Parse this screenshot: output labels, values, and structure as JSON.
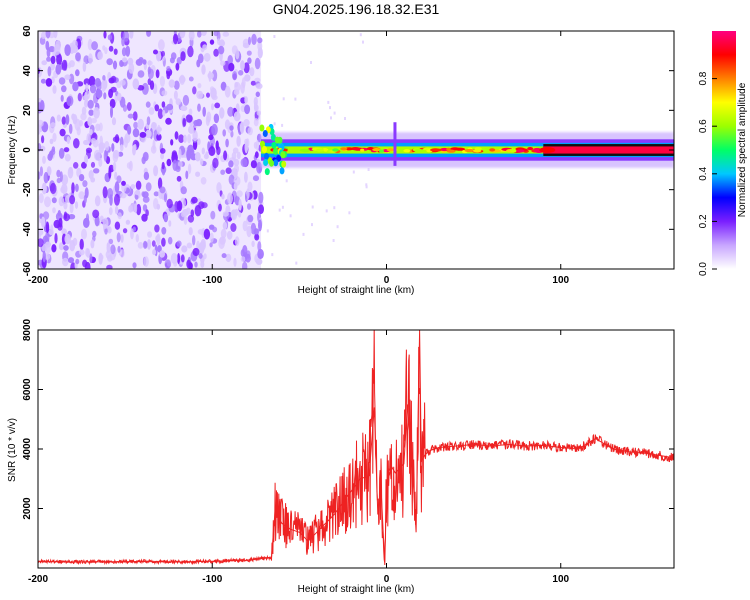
{
  "figure": {
    "title": "GN04.2025.196.18.32.E31"
  },
  "chart_data": [
    {
      "type": "heatmap",
      "xlabel": "Height of straight line (km)",
      "ylabel": "Frequency (Hz)",
      "xlim": [
        -200,
        165
      ],
      "ylim": [
        -60,
        60
      ],
      "xticks": [
        -200,
        -100,
        0,
        100
      ],
      "yticks": [
        -60,
        -40,
        -20,
        0,
        20,
        40,
        60
      ],
      "colorbar": {
        "label": "Normalized spectral amplitude",
        "range": [
          0,
          1
        ],
        "ticks": [
          "0.0",
          "0.2",
          "0.4",
          "0.6",
          "0.8"
        ],
        "colors": [
          "#ffffff",
          "#c8a6ff",
          "#7a1fff",
          "#0000ff",
          "#00c8ff",
          "#00ff66",
          "#9cff00",
          "#ffff00",
          "#ff8000",
          "#ff0000",
          "#ff0080"
        ]
      },
      "regions": [
        {
          "from_km": -200,
          "to_km": -72,
          "description_values": {
            "amplitude": 0.1,
            "frequency_span_hz": [
              -60,
              60
            ]
          }
        },
        {
          "from_km": -72,
          "to_km": 90,
          "description_values": {
            "amplitude_center": 0.8,
            "frequency_center_hz": 0,
            "frequency_halfwidth_hz": 3
          }
        },
        {
          "from_km": 90,
          "to_km": 165,
          "description_values": {
            "amplitude_center": 0.95,
            "frequency_center_hz": 0,
            "frequency_halfwidth_hz": 2
          }
        }
      ],
      "grid": false
    },
    {
      "type": "line",
      "xlabel": "Height of straight line (km)",
      "ylabel": "SNR (10 * v/v)",
      "xlim": [
        -200,
        165
      ],
      "ylim": [
        0,
        8000
      ],
      "xticks": [
        -200,
        -100,
        0,
        100
      ],
      "yticks": [
        2000,
        4000,
        6000,
        8000
      ],
      "series": [
        {
          "color": "#ee2222",
          "x": [
            -200,
            -180,
            -160,
            -140,
            -120,
            -100,
            -80,
            -66,
            -64,
            -60,
            -55,
            -50,
            -45,
            -40,
            -35,
            -30,
            -25,
            -20,
            -15,
            -10,
            -7,
            -5,
            -3,
            -1,
            0,
            3,
            5,
            10,
            12,
            15,
            17,
            19,
            20,
            22,
            25,
            30,
            40,
            50,
            60,
            70,
            80,
            90,
            100,
            110,
            120,
            130,
            140,
            150,
            160,
            165
          ],
          "y": [
            220,
            200,
            210,
            220,
            200,
            230,
            260,
            350,
            1900,
            1500,
            1300,
            1200,
            900,
            1200,
            1500,
            1800,
            2200,
            2600,
            3000,
            3100,
            5400,
            1800,
            2500,
            100,
            2800,
            3400,
            3200,
            3500,
            5500,
            3300,
            1200,
            8000,
            3600,
            3800,
            3950,
            4050,
            4100,
            4150,
            4100,
            4150,
            4100,
            4120,
            4050,
            4000,
            4350,
            4000,
            3900,
            3850,
            3750,
            3700
          ]
        }
      ],
      "grid": false
    }
  ]
}
